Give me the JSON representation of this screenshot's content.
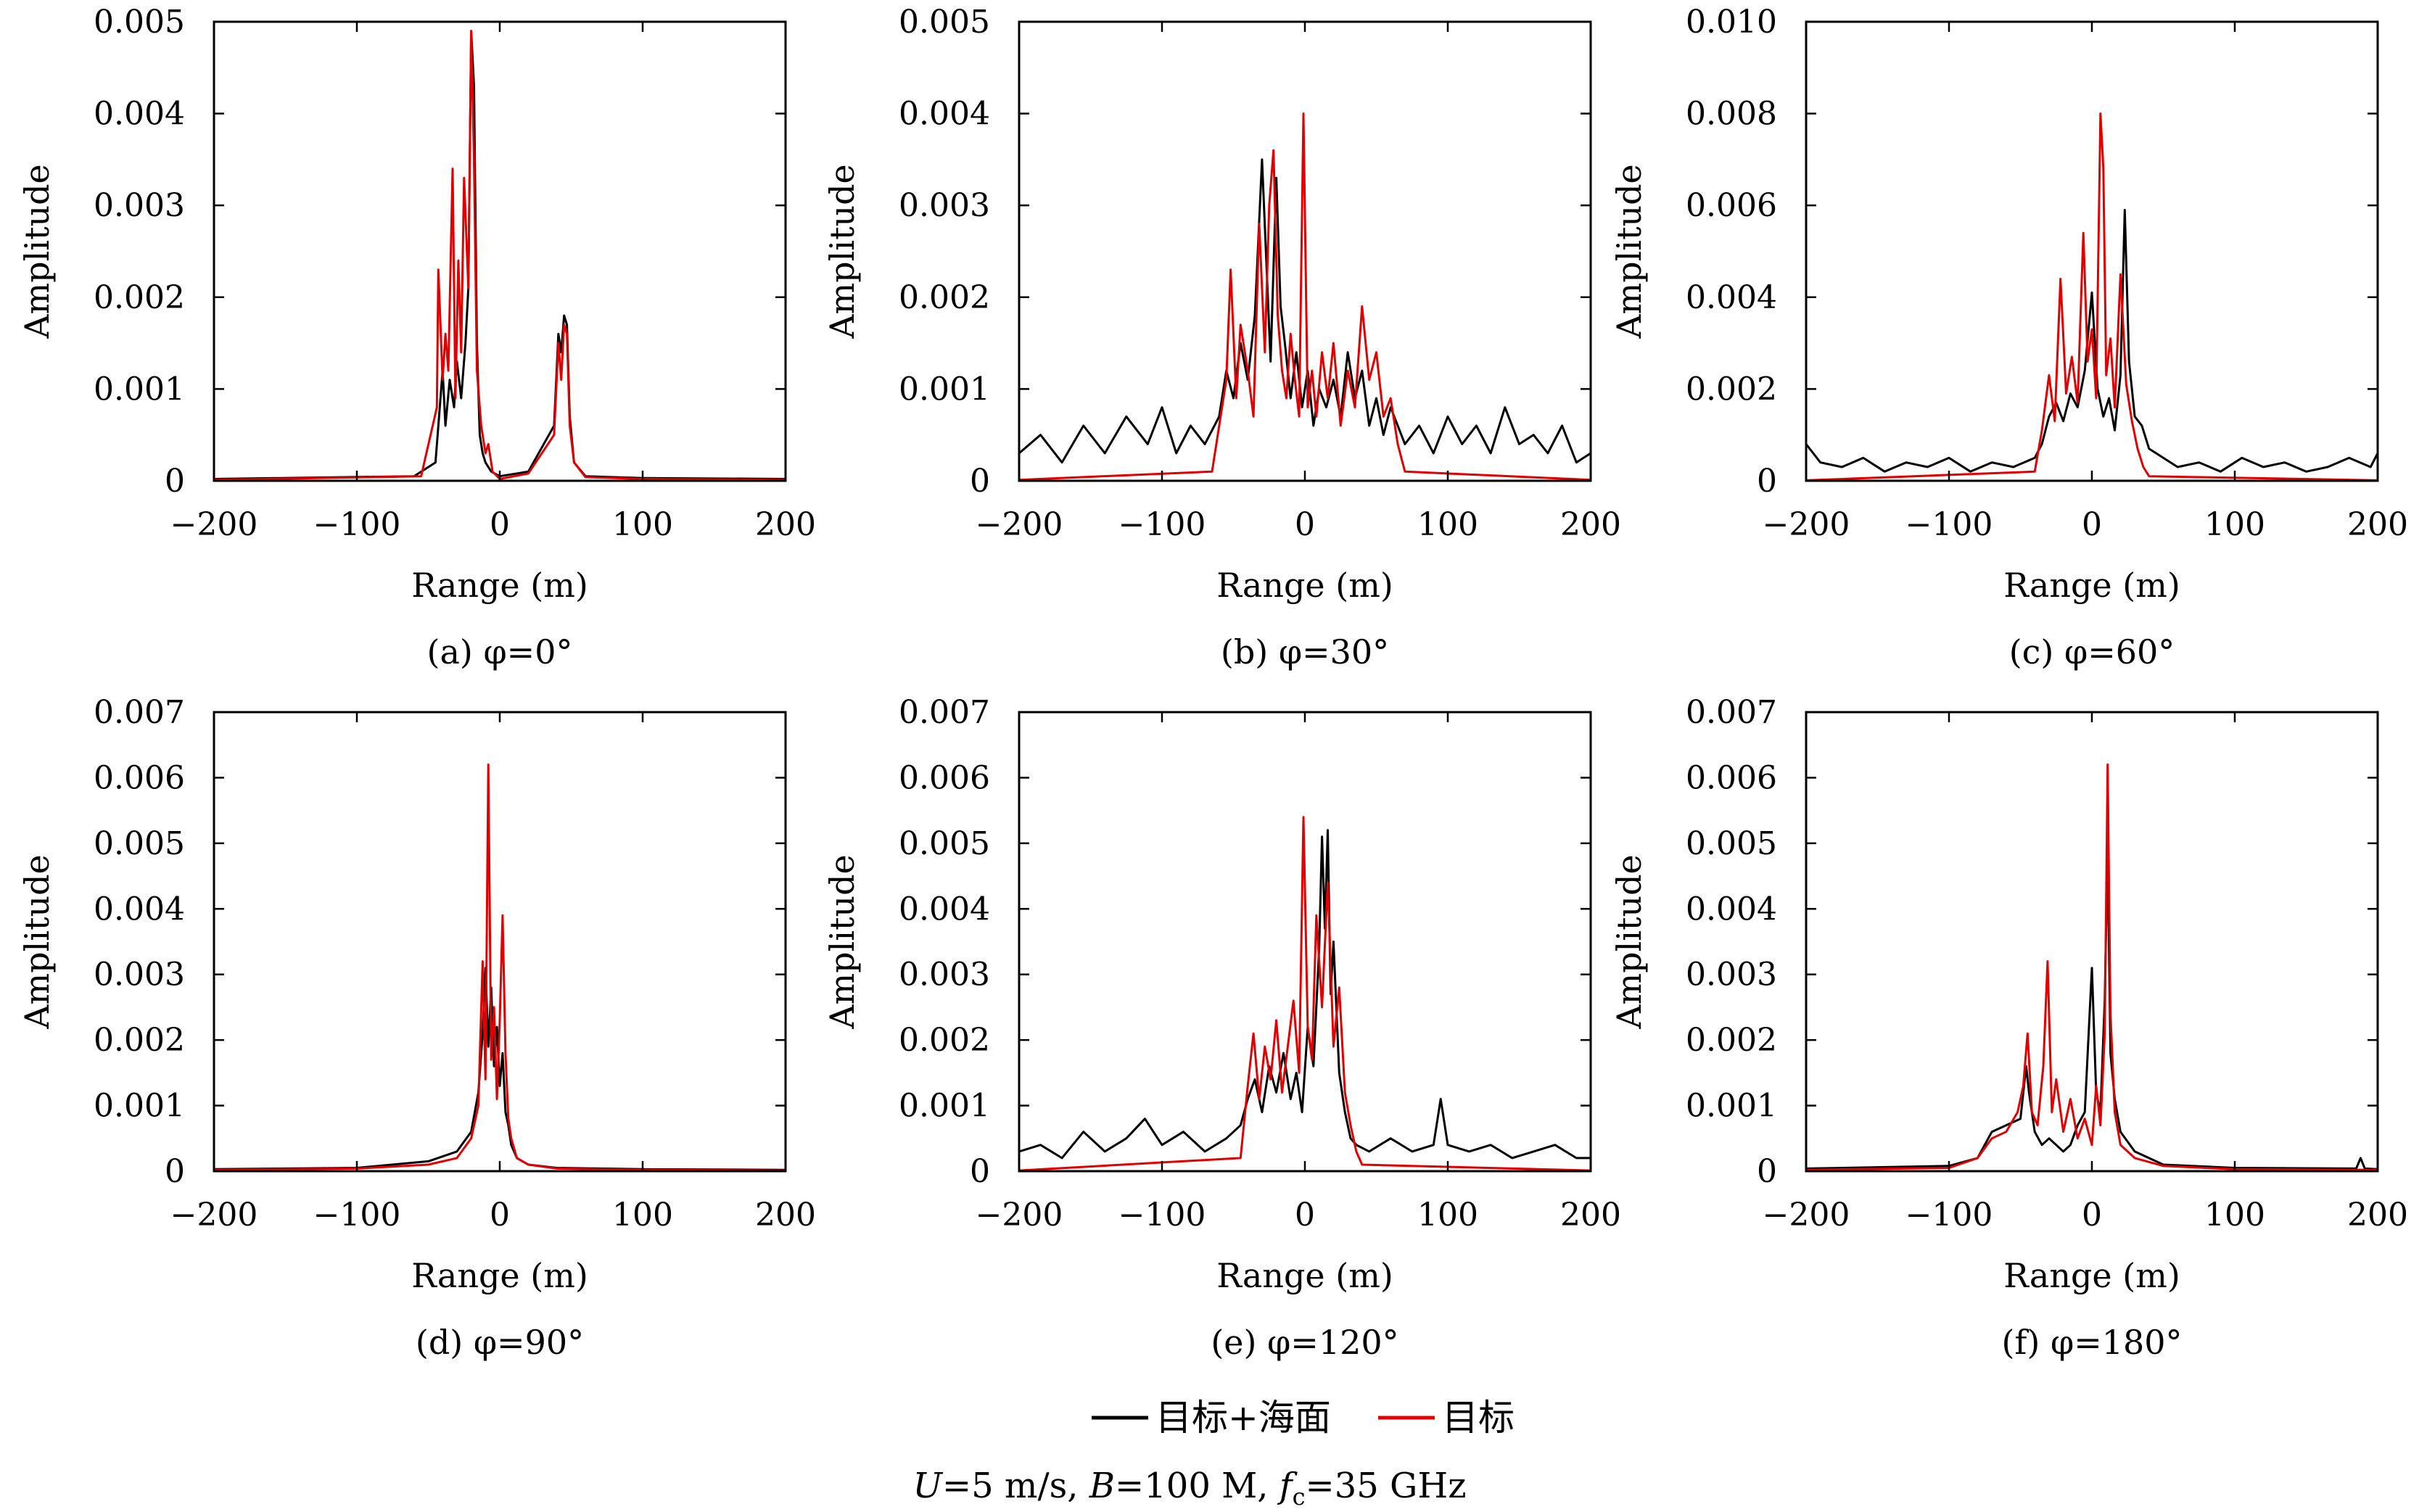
{
  "chart_data": [
    {
      "type": "line",
      "caption": "(a) φ=0°",
      "xlabel": "Range (m)",
      "ylabel": "Amplitude",
      "xlim": [
        -200,
        200
      ],
      "ylim": [
        0,
        0.005
      ],
      "xticks": [
        "−200",
        "−100",
        "0",
        "100",
        "200"
      ],
      "yticks": [
        "0",
        "0.001",
        "0.002",
        "0.003",
        "0.004",
        "0.005"
      ],
      "grid": false,
      "series": [
        {
          "name": "目标+海面",
          "color": "#000000",
          "x": [
            -200,
            -60,
            -45,
            -42,
            -40,
            -38,
            -35,
            -32,
            -30,
            -27,
            -24,
            -22,
            -20,
            -18,
            -16,
            -14,
            -12,
            -10,
            -6,
            0,
            20,
            38,
            41,
            43,
            45,
            47,
            49,
            52,
            60,
            100,
            200
          ],
          "y": [
            2e-05,
            5e-05,
            0.0002,
            0.0008,
            0.0012,
            0.0006,
            0.0011,
            0.0008,
            0.0013,
            0.0009,
            0.0015,
            0.0021,
            0.0049,
            0.0043,
            0.0015,
            0.0005,
            0.0003,
            0.0002,
            0.0001,
            5e-05,
            0.0001,
            0.0006,
            0.0016,
            0.0014,
            0.0018,
            0.0017,
            0.0007,
            0.0002,
            5e-05,
            3e-05,
            2e-05
          ]
        },
        {
          "name": "目标",
          "color": "#e00000",
          "x": [
            -200,
            -55,
            -44,
            -43,
            -40,
            -38,
            -36,
            -33,
            -31,
            -29,
            -27,
            -25,
            -22,
            -20,
            -18,
            -16,
            -13,
            -10,
            -8,
            -5,
            0,
            20,
            38,
            41,
            43,
            45,
            47,
            49,
            52,
            60,
            100,
            200
          ],
          "y": [
            1e-05,
            5e-05,
            0.0008,
            0.0023,
            0.0011,
            0.0016,
            0.0012,
            0.0034,
            0.0009,
            0.0024,
            0.0014,
            0.0033,
            0.0021,
            0.0049,
            0.0035,
            0.0012,
            0.0006,
            0.0003,
            0.0004,
            0.0001,
            2e-05,
            8e-05,
            0.0005,
            0.0015,
            0.0011,
            0.0017,
            0.0016,
            0.0006,
            0.0002,
            4e-05,
            2e-05,
            1e-05
          ]
        }
      ]
    },
    {
      "type": "line",
      "caption": "(b) φ=30°",
      "xlabel": "Range (m)",
      "ylabel": "Amplitude",
      "xlim": [
        -200,
        200
      ],
      "ylim": [
        0,
        0.005
      ],
      "xticks": [
        "−200",
        "−100",
        "0",
        "100",
        "200"
      ],
      "yticks": [
        "0",
        "0.001",
        "0.002",
        "0.003",
        "0.004",
        "0.005"
      ],
      "grid": false,
      "series": [
        {
          "name": "目标+海面",
          "color": "#000000",
          "x": [
            -200,
            -185,
            -170,
            -155,
            -140,
            -125,
            -110,
            -100,
            -90,
            -80,
            -70,
            -60,
            -55,
            -50,
            -45,
            -40,
            -35,
            -30,
            -27,
            -24,
            -20,
            -17,
            -14,
            -10,
            -6,
            -2,
            2,
            6,
            10,
            15,
            20,
            25,
            30,
            35,
            40,
            45,
            50,
            55,
            60,
            70,
            80,
            90,
            100,
            110,
            120,
            130,
            140,
            150,
            160,
            170,
            180,
            190,
            200
          ],
          "y": [
            0.0003,
            0.0005,
            0.0002,
            0.0006,
            0.0003,
            0.0007,
            0.0004,
            0.0008,
            0.0003,
            0.0006,
            0.0004,
            0.0007,
            0.0012,
            0.0009,
            0.0015,
            0.0011,
            0.0018,
            0.0035,
            0.0024,
            0.0013,
            0.0033,
            0.0019,
            0.0015,
            0.0009,
            0.0014,
            0.0008,
            0.0012,
            0.0006,
            0.001,
            0.0008,
            0.0011,
            0.0007,
            0.0014,
            0.0009,
            0.0012,
            0.0006,
            0.0009,
            0.0005,
            0.0008,
            0.0004,
            0.0006,
            0.0003,
            0.0007,
            0.0004,
            0.0006,
            0.0003,
            0.0008,
            0.0004,
            0.0005,
            0.0003,
            0.0006,
            0.0002,
            0.0003
          ]
        },
        {
          "name": "目标",
          "color": "#e00000",
          "x": [
            -200,
            -65,
            -55,
            -52,
            -48,
            -45,
            -40,
            -36,
            -32,
            -28,
            -25,
            -22,
            -19,
            -16,
            -13,
            -10,
            -7,
            -4,
            -1,
            2,
            5,
            8,
            12,
            16,
            20,
            25,
            30,
            35,
            40,
            45,
            50,
            55,
            60,
            65,
            70,
            200
          ],
          "y": [
            1e-05,
            0.0001,
            0.0011,
            0.0023,
            0.0009,
            0.0017,
            0.0012,
            0.0007,
            0.0028,
            0.0014,
            0.003,
            0.0036,
            0.0018,
            0.0012,
            0.0009,
            0.0016,
            0.0011,
            0.0007,
            0.004,
            0.0008,
            0.0012,
            0.0007,
            0.0014,
            0.0009,
            0.0015,
            0.0006,
            0.0012,
            0.0008,
            0.0019,
            0.0011,
            0.0014,
            0.0007,
            0.0009,
            0.0004,
            0.0001,
            1e-05
          ]
        }
      ]
    },
    {
      "type": "line",
      "caption": "(c) φ=60°",
      "xlabel": "Range (m)",
      "ylabel": "Amplitude",
      "xlim": [
        -200,
        200
      ],
      "ylim": [
        0,
        0.01
      ],
      "xticks": [
        "−200",
        "−100",
        "0",
        "100",
        "200"
      ],
      "yticks": [
        "0",
        "0.002",
        "0.004",
        "0.006",
        "0.008",
        "0.010"
      ],
      "grid": false,
      "series": [
        {
          "name": "目标+海面",
          "color": "#000000",
          "x": [
            -200,
            -190,
            -175,
            -160,
            -145,
            -130,
            -115,
            -100,
            -85,
            -70,
            -55,
            -40,
            -35,
            -30,
            -25,
            -20,
            -15,
            -10,
            -5,
            0,
            4,
            8,
            12,
            16,
            20,
            23,
            26,
            30,
            35,
            40,
            50,
            60,
            75,
            90,
            105,
            120,
            135,
            150,
            165,
            180,
            195,
            200
          ],
          "y": [
            0.0008,
            0.0004,
            0.0003,
            0.0005,
            0.0002,
            0.0004,
            0.0003,
            0.0005,
            0.0002,
            0.0004,
            0.0003,
            0.0005,
            0.0008,
            0.0014,
            0.0017,
            0.0013,
            0.0019,
            0.0016,
            0.0024,
            0.0041,
            0.002,
            0.0014,
            0.0018,
            0.0011,
            0.0023,
            0.0059,
            0.0026,
            0.0014,
            0.0012,
            0.0007,
            0.0005,
            0.0003,
            0.0004,
            0.0002,
            0.0005,
            0.0003,
            0.0004,
            0.0002,
            0.0003,
            0.0005,
            0.0003,
            0.0006
          ]
        },
        {
          "name": "目标",
          "color": "#e00000",
          "x": [
            -200,
            -40,
            -35,
            -30,
            -26,
            -22,
            -18,
            -14,
            -10,
            -6,
            -3,
            0,
            3,
            6,
            8,
            10,
            13,
            16,
            20,
            24,
            28,
            32,
            36,
            40,
            200
          ],
          "y": [
            1e-05,
            0.0002,
            0.0011,
            0.0023,
            0.0013,
            0.0044,
            0.0019,
            0.0027,
            0.0017,
            0.0054,
            0.0026,
            0.0033,
            0.0018,
            0.008,
            0.0068,
            0.0023,
            0.0031,
            0.0016,
            0.0045,
            0.0021,
            0.0013,
            0.0007,
            0.0003,
            0.0001,
            1e-05
          ]
        }
      ]
    },
    {
      "type": "line",
      "caption": "(d) φ=90°",
      "xlabel": "Range (m)",
      "ylabel": "Amplitude",
      "xlim": [
        -200,
        200
      ],
      "ylim": [
        0,
        0.007
      ],
      "xticks": [
        "−200",
        "−100",
        "0",
        "100",
        "200"
      ],
      "yticks": [
        "0",
        "0.001",
        "0.002",
        "0.003",
        "0.004",
        "0.005",
        "0.006",
        "0.007"
      ],
      "grid": false,
      "series": [
        {
          "name": "目标+海面",
          "color": "#000000",
          "x": [
            -200,
            -100,
            -50,
            -30,
            -20,
            -15,
            -12,
            -10,
            -8,
            -6,
            -4,
            -2,
            0,
            2,
            4,
            6,
            8,
            12,
            20,
            40,
            100,
            200
          ],
          "y": [
            3e-05,
            5e-05,
            0.00015,
            0.0003,
            0.0006,
            0.0012,
            0.0021,
            0.0031,
            0.0019,
            0.0028,
            0.0016,
            0.0022,
            0.0013,
            0.0018,
            0.0009,
            0.0007,
            0.0004,
            0.0002,
            0.0001,
            5e-05,
            3e-05,
            2e-05
          ]
        },
        {
          "name": "目标",
          "color": "#e00000",
          "x": [
            -200,
            -100,
            -50,
            -30,
            -20,
            -15,
            -12,
            -10,
            -8,
            -6,
            -4,
            -2,
            0,
            2,
            4,
            6,
            8,
            12,
            20,
            40,
            100,
            200
          ],
          "y": [
            2e-05,
            4e-05,
            0.0001,
            0.0002,
            0.0005,
            0.001,
            0.0032,
            0.0014,
            0.0062,
            0.0017,
            0.0025,
            0.0011,
            0.0023,
            0.0039,
            0.0018,
            0.0008,
            0.0005,
            0.0002,
            0.0001,
            4e-05,
            2e-05,
            1e-05
          ]
        }
      ]
    },
    {
      "type": "line",
      "caption": "(e) φ=120°",
      "xlabel": "Range (m)",
      "ylabel": "Amplitude",
      "xlim": [
        -200,
        200
      ],
      "ylim": [
        0,
        0.007
      ],
      "xticks": [
        "−200",
        "−100",
        "0",
        "100",
        "200"
      ],
      "yticks": [
        "0",
        "0.001",
        "0.002",
        "0.003",
        "0.004",
        "0.005",
        "0.006",
        "0.007"
      ],
      "grid": false,
      "series": [
        {
          "name": "目标+海面",
          "color": "#000000",
          "x": [
            -200,
            -185,
            -170,
            -155,
            -140,
            -125,
            -112,
            -100,
            -85,
            -70,
            -55,
            -45,
            -40,
            -35,
            -30,
            -25,
            -20,
            -15,
            -10,
            -6,
            -2,
            2,
            6,
            10,
            12,
            14,
            16,
            18,
            20,
            24,
            28,
            32,
            36,
            45,
            60,
            75,
            90,
            95,
            100,
            115,
            130,
            145,
            160,
            175,
            190,
            200
          ],
          "y": [
            0.0003,
            0.0004,
            0.0002,
            0.0006,
            0.0003,
            0.0005,
            0.0008,
            0.0004,
            0.0006,
            0.0003,
            0.0005,
            0.0007,
            0.0011,
            0.0014,
            0.0009,
            0.0016,
            0.0012,
            0.0018,
            0.0011,
            0.0015,
            0.0009,
            0.0022,
            0.0016,
            0.0034,
            0.0051,
            0.0037,
            0.0052,
            0.0027,
            0.0035,
            0.0015,
            0.0009,
            0.0005,
            0.0004,
            0.0003,
            0.0005,
            0.0003,
            0.0004,
            0.0011,
            0.0004,
            0.0003,
            0.0004,
            0.0002,
            0.0003,
            0.0004,
            0.0002,
            0.0002
          ]
        },
        {
          "name": "目标",
          "color": "#e00000",
          "x": [
            -200,
            -45,
            -40,
            -36,
            -32,
            -28,
            -24,
            -20,
            -16,
            -12,
            -8,
            -4,
            -1,
            2,
            5,
            8,
            12,
            16,
            20,
            24,
            28,
            32,
            36,
            40,
            200
          ],
          "y": [
            1e-05,
            0.0002,
            0.0013,
            0.0021,
            0.0011,
            0.0019,
            0.0014,
            0.0023,
            0.0012,
            0.0019,
            0.0026,
            0.0015,
            0.0054,
            0.0022,
            0.0017,
            0.0039,
            0.0025,
            0.0044,
            0.0019,
            0.0028,
            0.0012,
            0.0007,
            0.0003,
            0.0001,
            1e-05
          ]
        }
      ]
    },
    {
      "type": "line",
      "caption": "(f) φ=180°",
      "xlabel": "Range (m)",
      "ylabel": "Amplitude",
      "xlim": [
        -200,
        200
      ],
      "ylim": [
        0,
        0.007
      ],
      "xticks": [
        "−200",
        "−100",
        "0",
        "100",
        "200"
      ],
      "yticks": [
        "0",
        "0.001",
        "0.002",
        "0.003",
        "0.004",
        "0.005",
        "0.006",
        "0.007"
      ],
      "grid": false,
      "series": [
        {
          "name": "目标+海面",
          "color": "#000000",
          "x": [
            -200,
            -100,
            -80,
            -70,
            -60,
            -50,
            -46,
            -44,
            -40,
            -35,
            -30,
            -25,
            -20,
            -15,
            -10,
            -5,
            0,
            3,
            6,
            9,
            11,
            13,
            16,
            20,
            30,
            50,
            100,
            185,
            188,
            191,
            200
          ],
          "y": [
            4e-05,
            8e-05,
            0.0002,
            0.0006,
            0.0007,
            0.0008,
            0.0016,
            0.0012,
            0.0006,
            0.0004,
            0.0005,
            0.0004,
            0.0003,
            0.0004,
            0.0007,
            0.0009,
            0.0031,
            0.0012,
            0.0009,
            0.0026,
            0.0049,
            0.0018,
            0.0011,
            0.0006,
            0.0003,
            0.0001,
            5e-05,
            4e-05,
            0.0002,
            4e-05,
            3e-05
          ]
        },
        {
          "name": "目标",
          "color": "#e00000",
          "x": [
            -200,
            -100,
            -80,
            -70,
            -60,
            -52,
            -48,
            -45,
            -42,
            -38,
            -34,
            -31,
            -28,
            -25,
            -20,
            -15,
            -10,
            -5,
            0,
            3,
            6,
            9,
            11,
            13,
            16,
            20,
            30,
            50,
            100,
            200
          ],
          "y": [
            2e-05,
            5e-05,
            0.0002,
            0.0005,
            0.0006,
            0.0009,
            0.0013,
            0.0021,
            0.0009,
            0.0007,
            0.0016,
            0.0032,
            0.0009,
            0.0014,
            0.0006,
            0.0011,
            0.0005,
            0.0008,
            0.0004,
            0.0013,
            0.0007,
            0.0021,
            0.0062,
            0.0024,
            0.0009,
            0.0004,
            0.0002,
            8e-05,
            3e-05,
            2e-05
          ]
        }
      ]
    }
  ],
  "legend": {
    "items": [
      {
        "label": "目标+海面",
        "color": "#000000"
      },
      {
        "label": "目标",
        "color": "#e00000"
      }
    ],
    "placement": "bottom-center"
  },
  "footer": {
    "text": "U=5 m/s, B=100 M, fc=35 GHz",
    "italic_u": "U",
    "part1": "=5 m/s, ",
    "italic_b": "B",
    "part2": "=100 M, ",
    "italic_f": "f",
    "sub_c": "c",
    "part3": "=35 GHz"
  }
}
